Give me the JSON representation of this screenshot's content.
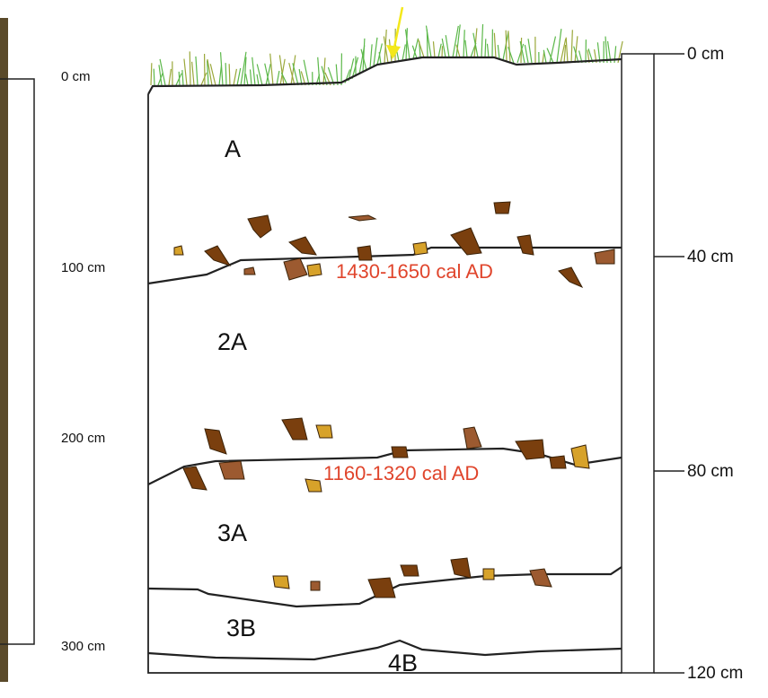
{
  "left_scale": {
    "labels": [
      "0 cm",
      "100 cm",
      "200 cm",
      "300 cm"
    ]
  },
  "right_scale": {
    "labels": [
      "0 cm",
      "40 cm",
      "80 cm",
      "120 cm"
    ]
  },
  "horizons": [
    "A",
    "2A",
    "3A",
    "3B",
    "4B"
  ],
  "dates": [
    "1430-1650 cal AD",
    "1160-1320 cal AD"
  ]
}
